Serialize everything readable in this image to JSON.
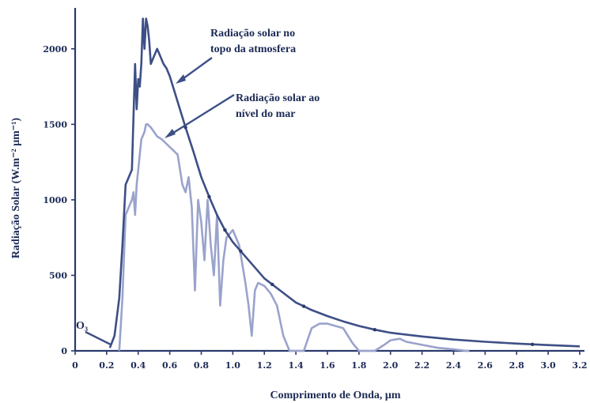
{
  "chart_data": {
    "type": "line",
    "xlabel": "Comprimento de Onda, μm",
    "ylabel": "Radiação Solar (W.m⁻² μm⁻¹)",
    "xlim": [
      0,
      3.2
    ],
    "ylim": [
      0,
      2250
    ],
    "xticks": [
      "0",
      "0.2",
      "0.4",
      "0.6",
      "0.8",
      "1.0",
      "1.2",
      "1.4",
      "1.6",
      "1.8",
      "2.0",
      "2.2",
      "2.4",
      "2.6",
      "2.8",
      "3.0",
      "3.2"
    ],
    "yticks": [
      "0",
      "500",
      "1000",
      "1500",
      "2000"
    ],
    "annotations": {
      "top": [
        "Radiação solar no",
        "topo da atmosfera"
      ],
      "sea": [
        "Radiação solar ao",
        "nível do mar"
      ],
      "ozone": "O₃"
    },
    "series": [
      {
        "x": [
          0.22,
          0.25,
          0.28,
          0.3,
          0.32,
          0.34,
          0.36,
          0.38,
          0.39,
          0.4,
          0.41,
          0.42,
          0.43,
          0.44,
          0.45,
          0.46,
          0.47,
          0.48,
          0.5,
          0.52,
          0.54,
          0.56,
          0.58,
          0.6,
          0.65,
          0.7,
          0.75,
          0.8,
          0.85,
          0.9,
          0.95,
          1.0,
          1.1,
          1.2,
          1.3,
          1.4,
          1.5,
          1.6,
          1.7,
          1.8,
          1.9,
          2.0,
          2.2,
          2.4,
          2.6,
          2.8,
          3.0,
          3.2
        ],
        "values": [
          20,
          100,
          350,
          700,
          1100,
          1150,
          1200,
          1900,
          1600,
          1800,
          1750,
          1900,
          2200,
          2000,
          2200,
          2150,
          2050,
          1900,
          1950,
          2000,
          1950,
          1900,
          1870,
          1820,
          1650,
          1480,
          1320,
          1150,
          1020,
          900,
          800,
          720,
          600,
          480,
          400,
          320,
          270,
          230,
          195,
          165,
          140,
          120,
          95,
          75,
          60,
          48,
          38,
          30
        ]
      },
      {
        "x": [
          0.28,
          0.3,
          0.32,
          0.34,
          0.36,
          0.37,
          0.38,
          0.39,
          0.4,
          0.42,
          0.44,
          0.45,
          0.46,
          0.48,
          0.5,
          0.52,
          0.55,
          0.6,
          0.65,
          0.68,
          0.7,
          0.72,
          0.74,
          0.76,
          0.78,
          0.8,
          0.82,
          0.84,
          0.86,
          0.88,
          0.9,
          0.92,
          0.94,
          0.96,
          1.0,
          1.04,
          1.08,
          1.1,
          1.12,
          1.14,
          1.16,
          1.2,
          1.24,
          1.28,
          1.32,
          1.36,
          1.38,
          1.4,
          1.45,
          1.5,
          1.55,
          1.6,
          1.7,
          1.76,
          1.8,
          1.82,
          1.9,
          1.96,
          2.0,
          2.06,
          2.1,
          2.2,
          2.3,
          2.4,
          2.48,
          2.5
        ],
        "values": [
          0,
          350,
          900,
          950,
          1000,
          1050,
          900,
          1100,
          1200,
          1400,
          1450,
          1500,
          1500,
          1480,
          1450,
          1420,
          1400,
          1350,
          1300,
          1100,
          1050,
          1150,
          950,
          400,
          1000,
          850,
          600,
          1000,
          700,
          500,
          900,
          300,
          600,
          750,
          800,
          700,
          450,
          300,
          100,
          400,
          450,
          430,
          380,
          300,
          100,
          0,
          0,
          0,
          0,
          150,
          180,
          180,
          150,
          50,
          0,
          0,
          0,
          40,
          70,
          80,
          60,
          40,
          20,
          10,
          0,
          0
        ]
      }
    ]
  }
}
